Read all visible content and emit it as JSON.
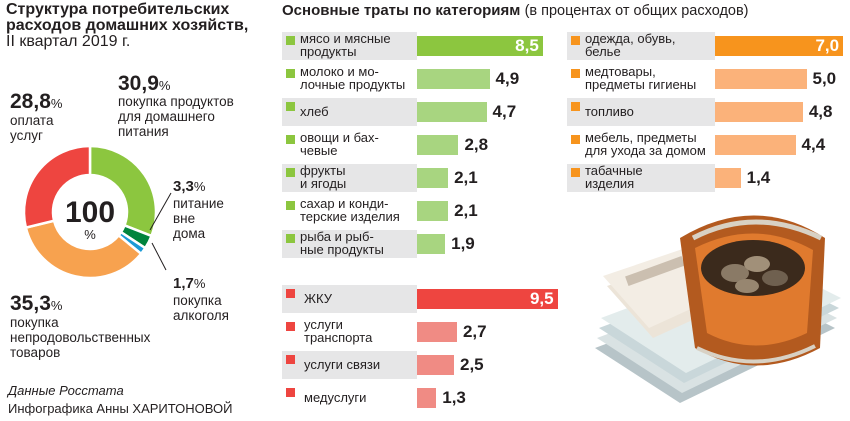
{
  "left": {
    "title": "Структура потребительских расходов домашних хозяйств,",
    "period": "II квартал 2019 г.",
    "center_value": "100",
    "center_unit": "%",
    "source": "Данные Росстата",
    "credit": "Инфографика Анны ХАРИТОНОВОЙ"
  },
  "right": {
    "title": "Основные траты по категориям",
    "subtitle": "(в процентах от общих расходов)"
  },
  "colors": {
    "food": "#8cc63f",
    "food_light": "#a8d580",
    "clothing": "#f7941d",
    "clothing_light": "#fbb27a",
    "housing": "#ee4540",
    "housing_light": "#f08b84",
    "services": "#f15a4a",
    "alcohol": "#1b9ad6",
    "catering": "#00843d"
  },
  "chart_data": [
    {
      "type": "pie",
      "title": "Структура потребительских расходов домашних хозяйств, II квартал 2019 г.",
      "center_label": "100 %",
      "slices": [
        {
          "value": "30,9",
          "v": 30.9,
          "unit": "%",
          "label": "покупка продуктов для домашнего питания",
          "color": "#8cc63f"
        },
        {
          "value": "3,3",
          "v": 3.3,
          "unit": "%",
          "label": "питание вне дома",
          "color": "#00843d"
        },
        {
          "value": "1,7",
          "v": 1.7,
          "unit": "%",
          "label": "покупка алкоголя",
          "color": "#1b9ad6"
        },
        {
          "value": "35,3",
          "v": 35.3,
          "unit": "%",
          "label": "покупка непродовольственных товаров",
          "color": "#f7a24f"
        },
        {
          "value": "28,8",
          "v": 28.8,
          "unit": "%",
          "label": "оплата услуг",
          "color": "#ee4540"
        }
      ]
    },
    {
      "type": "bar",
      "title": "Основные траты по категориям",
      "subtitle": "(в процентах от общих расходов)",
      "groups": [
        {
          "name": "food",
          "items": [
            {
              "label": "мясо и мясные\nпродукты",
              "value": "8,5",
              "v": 8.5
            },
            {
              "label": "молоко и мо-\nлочные продукты",
              "value": "4,9",
              "v": 4.9
            },
            {
              "label": "хлеб",
              "value": "4,7",
              "v": 4.7
            },
            {
              "label": "овощи и бах-\nчевые",
              "value": "2,8",
              "v": 2.8
            },
            {
              "label": "фрукты\nи ягоды",
              "value": "2,1",
              "v": 2.1
            },
            {
              "label": "сахар и конди-\nтерские изделия",
              "value": "2,1",
              "v": 2.1
            },
            {
              "label": "рыба и рыб-\nные продукты",
              "value": "1,9",
              "v": 1.9
            }
          ]
        },
        {
          "name": "nonfood",
          "items": [
            {
              "label": "одежда, обувь,\nбелье",
              "value": "7,0",
              "v": 7.0
            },
            {
              "label": "медтовары,\nпредметы гигиены",
              "value": "5,0",
              "v": 5.0
            },
            {
              "label": "топливо",
              "value": "4,8",
              "v": 4.8
            },
            {
              "label": "мебель, предметы\nдля ухода за домом",
              "value": "4,4",
              "v": 4.4
            },
            {
              "label": "табачные\nизделия",
              "value": "1,4",
              "v": 1.4
            }
          ]
        },
        {
          "name": "services",
          "items": [
            {
              "label": "ЖКУ",
              "value": "9,5",
              "v": 9.5
            },
            {
              "label": "услуги\nтранспорта",
              "value": "2,7",
              "v": 2.7
            },
            {
              "label": "услуги связи",
              "value": "2,5",
              "v": 2.5
            },
            {
              "label": "медуслуги",
              "value": "1,3",
              "v": 1.3
            }
          ]
        }
      ]
    }
  ]
}
